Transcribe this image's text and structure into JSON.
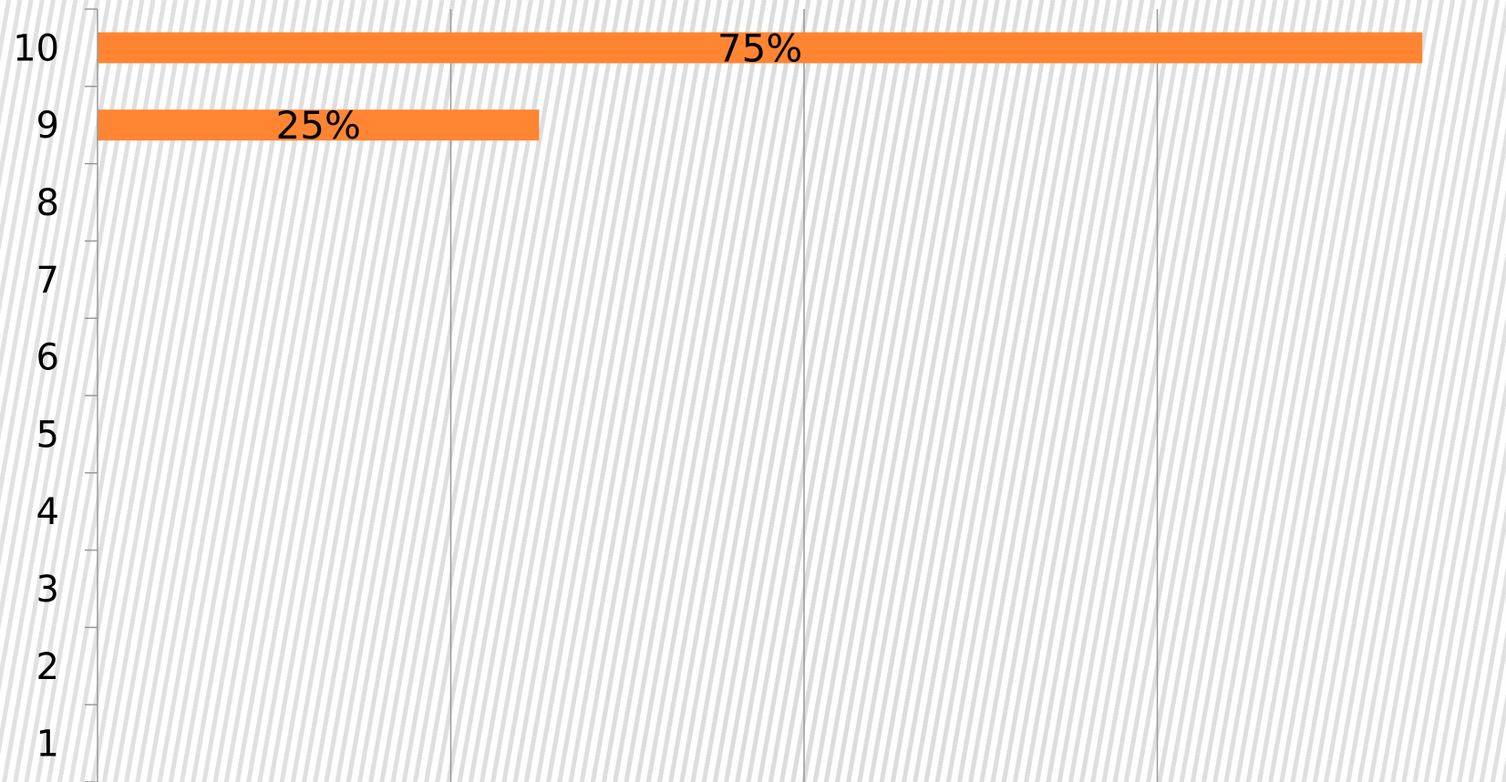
{
  "chart_data": {
    "type": "bar",
    "orientation": "horizontal",
    "categories": [
      "1",
      "2",
      "3",
      "4",
      "5",
      "6",
      "7",
      "8",
      "9",
      "10"
    ],
    "values": [
      0,
      0,
      0,
      0,
      0,
      0,
      0,
      0,
      0.25,
      0.75
    ],
    "data_labels": [
      "",
      "",
      "",
      "",
      "",
      "",
      "",
      "",
      "25%",
      "75%"
    ],
    "title": "",
    "xlabel": "",
    "ylabel": "",
    "xlim": [
      0,
      0.8
    ],
    "x_gridlines": [
      0.2,
      0.4,
      0.6
    ],
    "grid": true,
    "x_tick_labels_shown": false,
    "bar_color": "#ff8533",
    "gridline_color": "#999999",
    "axis_color": "#999999"
  }
}
